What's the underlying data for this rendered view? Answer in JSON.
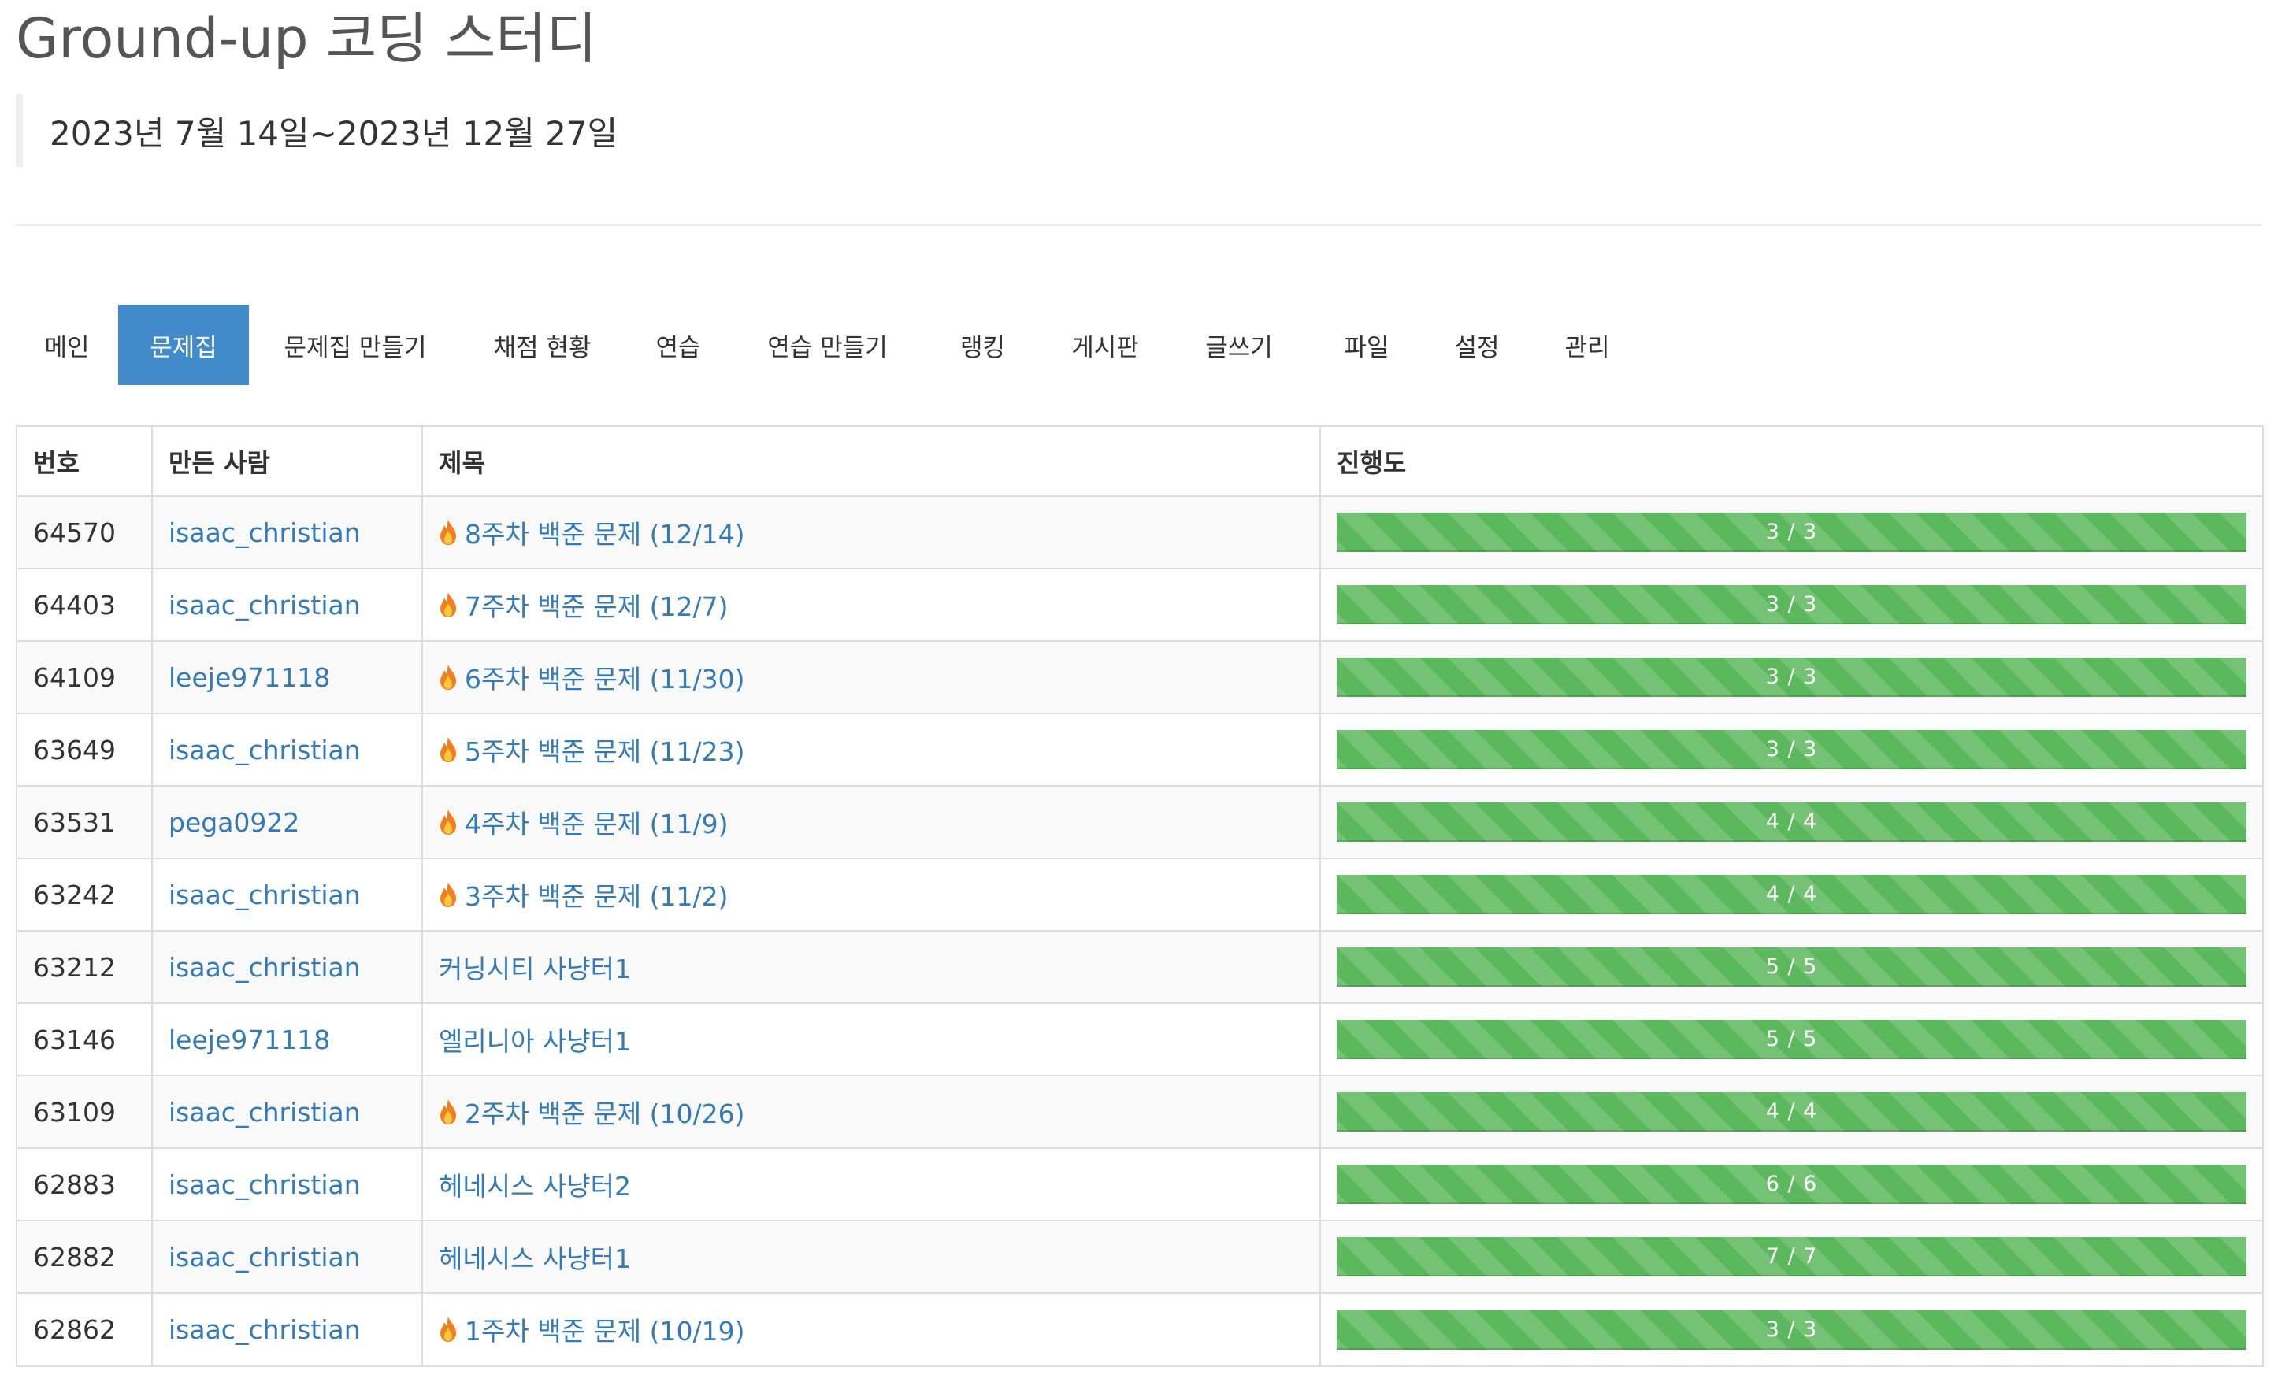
{
  "header": {
    "title": "Ground-up 코딩 스터디",
    "period": "2023년 7월 14일~2023년 12월 27일"
  },
  "tabs": [
    {
      "label": "메인",
      "active": false
    },
    {
      "label": "문제집",
      "active": true
    },
    {
      "label": "문제집 만들기",
      "active": false
    },
    {
      "label": "채점 현황",
      "active": false
    },
    {
      "label": "연습",
      "active": false
    },
    {
      "label": "연습 만들기",
      "active": false
    },
    {
      "label": "랭킹",
      "active": false
    },
    {
      "label": "게시판",
      "active": false
    },
    {
      "label": "글쓰기",
      "active": false
    },
    {
      "label": "파일",
      "active": false
    },
    {
      "label": "설정",
      "active": false
    },
    {
      "label": "관리",
      "active": false
    }
  ],
  "table": {
    "headers": [
      "번호",
      "만든 사람",
      "제목",
      "진행도"
    ],
    "rows": [
      {
        "id": "64570",
        "maker": "isaac_christian",
        "title": "8주차 백준 문제 (12/14)",
        "hot": true,
        "progress": "3 / 3"
      },
      {
        "id": "64403",
        "maker": "isaac_christian",
        "title": "7주차 백준 문제 (12/7)",
        "hot": true,
        "progress": "3 / 3"
      },
      {
        "id": "64109",
        "maker": "leeje971118",
        "title": "6주차 백준 문제 (11/30)",
        "hot": true,
        "progress": "3 / 3"
      },
      {
        "id": "63649",
        "maker": "isaac_christian",
        "title": "5주차 백준 문제 (11/23)",
        "hot": true,
        "progress": "3 / 3"
      },
      {
        "id": "63531",
        "maker": "pega0922",
        "title": "4주차 백준 문제 (11/9)",
        "hot": true,
        "progress": "4 / 4"
      },
      {
        "id": "63242",
        "maker": "isaac_christian",
        "title": "3주차 백준 문제 (11/2)",
        "hot": true,
        "progress": "4 / 4"
      },
      {
        "id": "63212",
        "maker": "isaac_christian",
        "title": "커닝시티 사냥터1",
        "hot": false,
        "progress": "5 / 5"
      },
      {
        "id": "63146",
        "maker": "leeje971118",
        "title": "엘리니아 사냥터1",
        "hot": false,
        "progress": "5 / 5"
      },
      {
        "id": "63109",
        "maker": "isaac_christian",
        "title": "2주차 백준 문제 (10/26)",
        "hot": true,
        "progress": "4 / 4"
      },
      {
        "id": "62883",
        "maker": "isaac_christian",
        "title": "헤네시스 사냥터2",
        "hot": false,
        "progress": "6 / 6"
      },
      {
        "id": "62882",
        "maker": "isaac_christian",
        "title": "헤네시스 사냥터1",
        "hot": false,
        "progress": "7 / 7"
      },
      {
        "id": "62862",
        "maker": "isaac_christian",
        "title": "1주차 백준 문제 (10/19)",
        "hot": true,
        "progress": "3 / 3"
      }
    ]
  },
  "icons": {
    "hot": "fire-icon"
  },
  "colors": {
    "accent": "#428bca",
    "link": "#337ab7",
    "progress": "#5cb85c",
    "fire_outer": "#f0801e",
    "fire_inner": "#ffc83d"
  }
}
